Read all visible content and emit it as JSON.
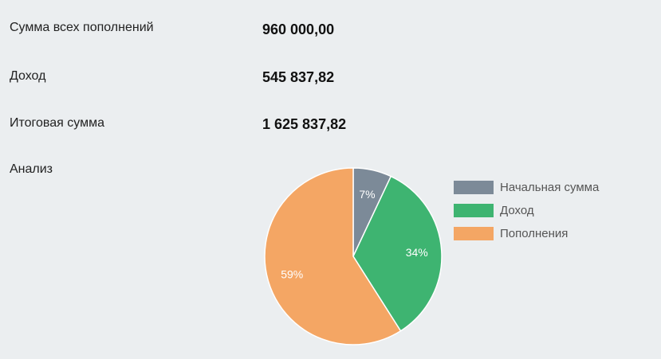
{
  "summary": {
    "rows": [
      {
        "label": "Сумма всех пополнений",
        "value": "960 000,00"
      },
      {
        "label": "Доход",
        "value": "545 837,82"
      },
      {
        "label": "Итоговая сумма",
        "value": "1 625 837,82"
      }
    ],
    "analysis_label": "Анализ"
  },
  "chart_data": {
    "type": "pie",
    "slices": [
      {
        "label": "Начальная сумма",
        "value": 7,
        "display": "7%",
        "color": "#7c8a98"
      },
      {
        "label": "Доход",
        "value": 34,
        "display": "34%",
        "color": "#3eb471"
      },
      {
        "label": "Пополнения",
        "value": 59,
        "display": "59%",
        "color": "#f4a664"
      }
    ],
    "legend_position": "right"
  }
}
